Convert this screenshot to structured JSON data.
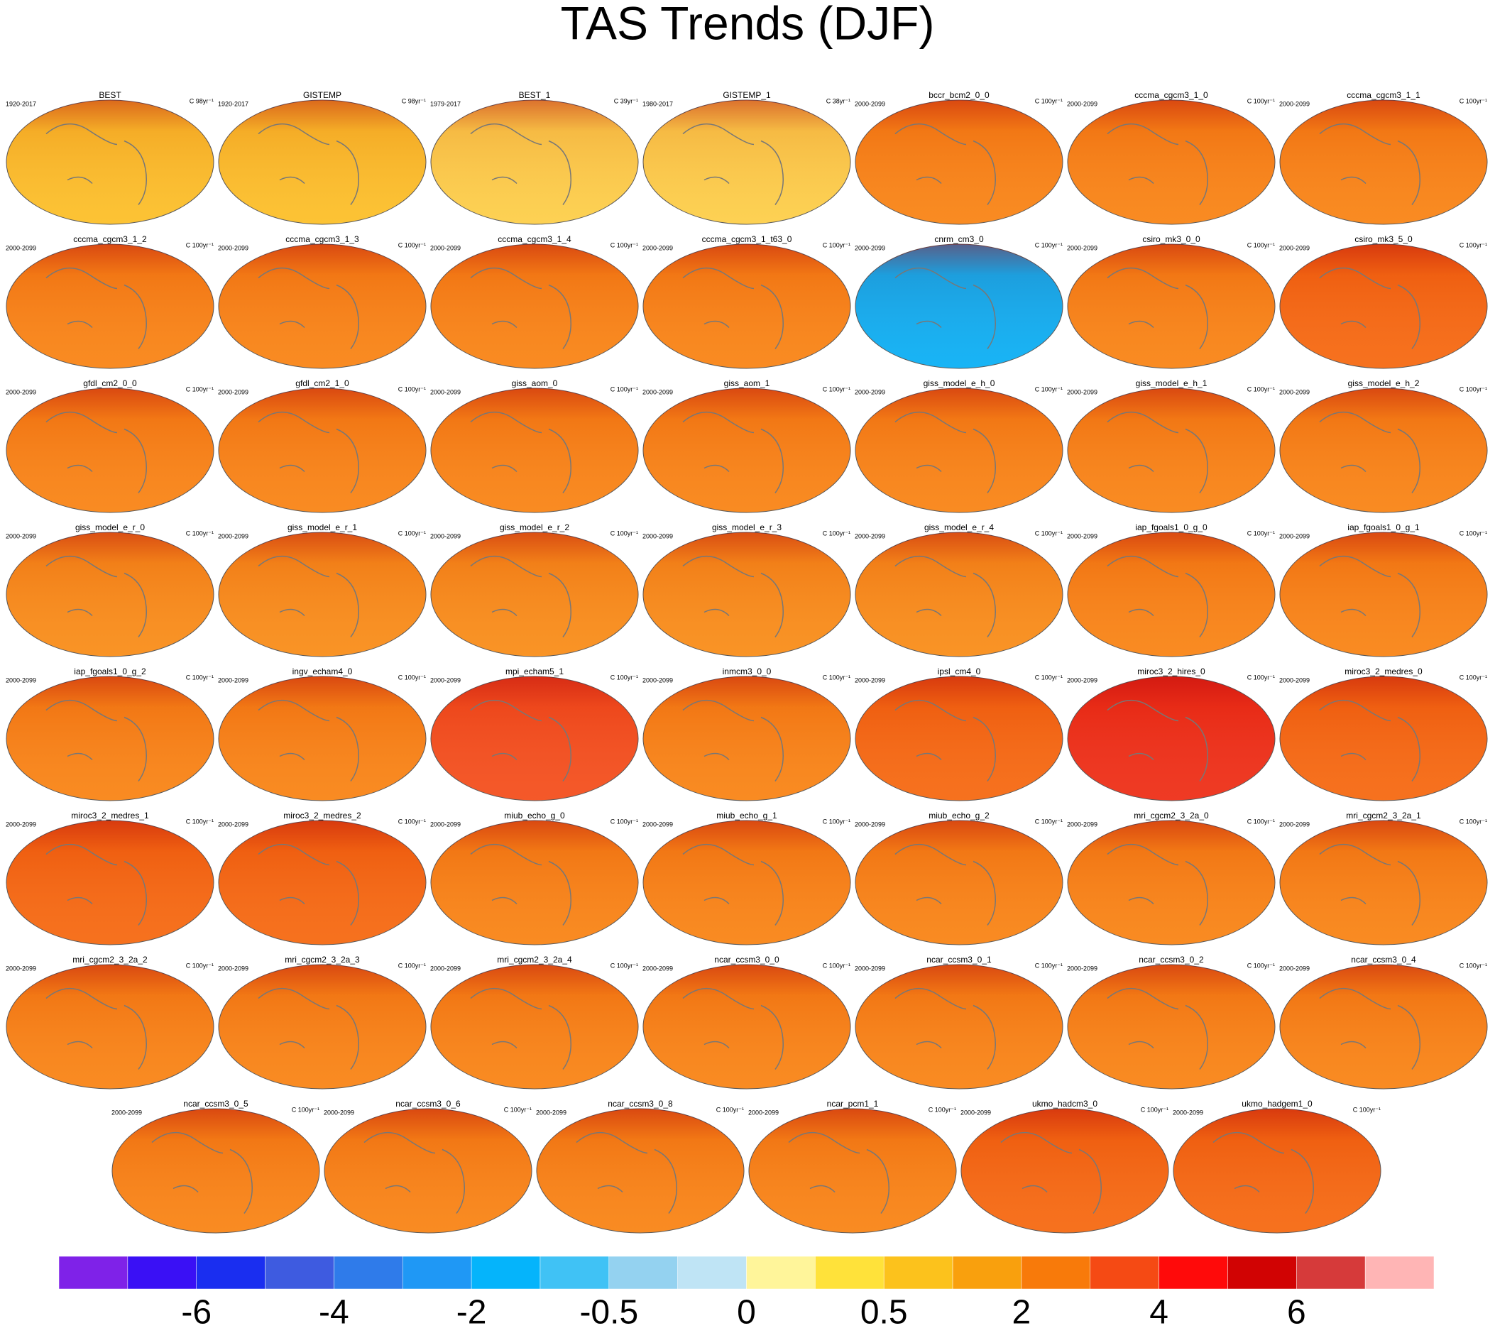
{
  "title": "TAS Trends (DJF)",
  "panels": [
    {
      "name": "BEST",
      "period": "1920-2017",
      "units": "C 98yr⁻¹",
      "color": "#fcc02a"
    },
    {
      "name": "GISTEMP",
      "period": "1920-2017",
      "units": "C 98yr⁻¹",
      "color": "#fcc02a"
    },
    {
      "name": "BEST_1",
      "period": "1979-2017",
      "units": "C 39yr⁻¹",
      "color": "#fdcf4a"
    },
    {
      "name": "GISTEMP_1",
      "period": "1980-2017",
      "units": "C 38yr⁻¹",
      "color": "#fdcf4a"
    },
    {
      "name": "bccr_bcm2_0_0",
      "period": "2000-2099",
      "units": "C 100yr⁻¹",
      "color": "#f98516"
    },
    {
      "name": "cccma_cgcm3_1_0",
      "period": "2000-2099",
      "units": "C 100yr⁻¹",
      "color": "#f98516"
    },
    {
      "name": "cccma_cgcm3_1_1",
      "period": "2000-2099",
      "units": "C 100yr⁻¹",
      "color": "#f98516"
    },
    {
      "name": "cccma_cgcm3_1_2",
      "period": "2000-2099",
      "units": "C 100yr⁻¹",
      "color": "#f98516"
    },
    {
      "name": "cccma_cgcm3_1_3",
      "period": "2000-2099",
      "units": "C 100yr⁻¹",
      "color": "#f98516"
    },
    {
      "name": "cccma_cgcm3_1_4",
      "period": "2000-2099",
      "units": "C 100yr⁻¹",
      "color": "#f98516"
    },
    {
      "name": "cccma_cgcm3_1_t63_0",
      "period": "2000-2099",
      "units": "C 100yr⁻¹",
      "color": "#f98516"
    },
    {
      "name": "cnrm_cm3_0",
      "period": "2000-2099",
      "units": "C 100yr⁻¹",
      "color": "#0cb0f5"
    },
    {
      "name": "csiro_mk3_0_0",
      "period": "2000-2099",
      "units": "C 100yr⁻¹",
      "color": "#f98516"
    },
    {
      "name": "csiro_mk3_5_0",
      "period": "2000-2099",
      "units": "C 100yr⁻¹",
      "color": "#f66a12"
    },
    {
      "name": "gfdl_cm2_0_0",
      "period": "2000-2099",
      "units": "C 100yr⁻¹",
      "color": "#f98516"
    },
    {
      "name": "gfdl_cm2_1_0",
      "period": "2000-2099",
      "units": "C 100yr⁻¹",
      "color": "#f98516"
    },
    {
      "name": "giss_aom_0",
      "period": "2000-2099",
      "units": "C 100yr⁻¹",
      "color": "#f98516"
    },
    {
      "name": "giss_aom_1",
      "period": "2000-2099",
      "units": "C 100yr⁻¹",
      "color": "#f98516"
    },
    {
      "name": "giss_model_e_h_0",
      "period": "2000-2099",
      "units": "C 100yr⁻¹",
      "color": "#f98516"
    },
    {
      "name": "giss_model_e_h_1",
      "period": "2000-2099",
      "units": "C 100yr⁻¹",
      "color": "#f98516"
    },
    {
      "name": "giss_model_e_h_2",
      "period": "2000-2099",
      "units": "C 100yr⁻¹",
      "color": "#f98516"
    },
    {
      "name": "giss_model_e_r_0",
      "period": "2000-2099",
      "units": "C 100yr⁻¹",
      "color": "#f98e1a"
    },
    {
      "name": "giss_model_e_r_1",
      "period": "2000-2099",
      "units": "C 100yr⁻¹",
      "color": "#f98e1a"
    },
    {
      "name": "giss_model_e_r_2",
      "period": "2000-2099",
      "units": "C 100yr⁻¹",
      "color": "#f98e1a"
    },
    {
      "name": "giss_model_e_r_3",
      "period": "2000-2099",
      "units": "C 100yr⁻¹",
      "color": "#f98e1a"
    },
    {
      "name": "giss_model_e_r_4",
      "period": "2000-2099",
      "units": "C 100yr⁻¹",
      "color": "#f98e1a"
    },
    {
      "name": "iap_fgoals1_0_g_0",
      "period": "2000-2099",
      "units": "C 100yr⁻¹",
      "color": "#f98516"
    },
    {
      "name": "iap_fgoals1_0_g_1",
      "period": "2000-2099",
      "units": "C 100yr⁻¹",
      "color": "#f98516"
    },
    {
      "name": "iap_fgoals1_0_g_2",
      "period": "2000-2099",
      "units": "C 100yr⁻¹",
      "color": "#f98516"
    },
    {
      "name": "ingv_echam4_0",
      "period": "2000-2099",
      "units": "C 100yr⁻¹",
      "color": "#f98516"
    },
    {
      "name": "mpi_echam5_1",
      "period": "2000-2099",
      "units": "C 100yr⁻¹",
      "color": "#f4501e"
    },
    {
      "name": "inmcm3_0_0",
      "period": "2000-2099",
      "units": "C 100yr⁻¹",
      "color": "#f98516"
    },
    {
      "name": "ipsl_cm4_0",
      "period": "2000-2099",
      "units": "C 100yr⁻¹",
      "color": "#f66a12"
    },
    {
      "name": "miroc3_2_hires_0",
      "period": "2000-2099",
      "units": "C 100yr⁻¹",
      "color": "#ee3018"
    },
    {
      "name": "miroc3_2_medres_0",
      "period": "2000-2099",
      "units": "C 100yr⁻¹",
      "color": "#f66a12"
    },
    {
      "name": "miroc3_2_medres_1",
      "period": "2000-2099",
      "units": "C 100yr⁻¹",
      "color": "#f66a12"
    },
    {
      "name": "miroc3_2_medres_2",
      "period": "2000-2099",
      "units": "C 100yr⁻¹",
      "color": "#f66a12"
    },
    {
      "name": "miub_echo_g_0",
      "period": "2000-2099",
      "units": "C 100yr⁻¹",
      "color": "#f98516"
    },
    {
      "name": "miub_echo_g_1",
      "period": "2000-2099",
      "units": "C 100yr⁻¹",
      "color": "#f98516"
    },
    {
      "name": "miub_echo_g_2",
      "period": "2000-2099",
      "units": "C 100yr⁻¹",
      "color": "#f98516"
    },
    {
      "name": "mri_cgcm2_3_2a_0",
      "period": "2000-2099",
      "units": "C 100yr⁻¹",
      "color": "#f98516"
    },
    {
      "name": "mri_cgcm2_3_2a_1",
      "period": "2000-2099",
      "units": "C 100yr⁻¹",
      "color": "#f98516"
    },
    {
      "name": "mri_cgcm2_3_2a_2",
      "period": "2000-2099",
      "units": "C 100yr⁻¹",
      "color": "#f98516"
    },
    {
      "name": "mri_cgcm2_3_2a_3",
      "period": "2000-2099",
      "units": "C 100yr⁻¹",
      "color": "#f98516"
    },
    {
      "name": "mri_cgcm2_3_2a_4",
      "period": "2000-2099",
      "units": "C 100yr⁻¹",
      "color": "#f98516"
    },
    {
      "name": "ncar_ccsm3_0_0",
      "period": "2000-2099",
      "units": "C 100yr⁻¹",
      "color": "#f98516"
    },
    {
      "name": "ncar_ccsm3_0_1",
      "period": "2000-2099",
      "units": "C 100yr⁻¹",
      "color": "#f98516"
    },
    {
      "name": "ncar_ccsm3_0_2",
      "period": "2000-2099",
      "units": "C 100yr⁻¹",
      "color": "#f98516"
    },
    {
      "name": "ncar_ccsm3_0_4",
      "period": "2000-2099",
      "units": "C 100yr⁻¹",
      "color": "#f98516"
    },
    {
      "name": "ncar_ccsm3_0_5",
      "period": "2000-2099",
      "units": "C 100yr⁻¹",
      "color": "#f98516"
    },
    {
      "name": "ncar_ccsm3_0_6",
      "period": "2000-2099",
      "units": "C 100yr⁻¹",
      "color": "#f98516"
    },
    {
      "name": "ncar_ccsm3_0_8",
      "period": "2000-2099",
      "units": "C 100yr⁻¹",
      "color": "#f98516"
    },
    {
      "name": "ncar_pcm1_1",
      "period": "2000-2099",
      "units": "C 100yr⁻¹",
      "color": "#f98516"
    },
    {
      "name": "ukmo_hadcm3_0",
      "period": "2000-2099",
      "units": "C 100yr⁻¹",
      "color": "#f66a12"
    },
    {
      "name": "ukmo_hadgem1_0",
      "period": "2000-2099",
      "units": "C 100yr⁻¹",
      "color": "#f66a12"
    }
  ],
  "colorbar": {
    "colors": [
      "#7f22e8",
      "#3a10f5",
      "#1a2ef0",
      "#3e5be0",
      "#2f7bea",
      "#1f98f5",
      "#05b4fb",
      "#40c2f5",
      "#94d2f0",
      "#bfe4f5",
      "#fff59a",
      "#ffe23a",
      "#fcc21c",
      "#f9a00d",
      "#f87a0a",
      "#f54a14",
      "#ff0a0a",
      "#d10303",
      "#d63a3a",
      "#ffb5b5"
    ],
    "labels": [
      "-6",
      "-4",
      "-2",
      "-0.5",
      "0",
      "0.5",
      "2",
      "4",
      "6"
    ]
  }
}
